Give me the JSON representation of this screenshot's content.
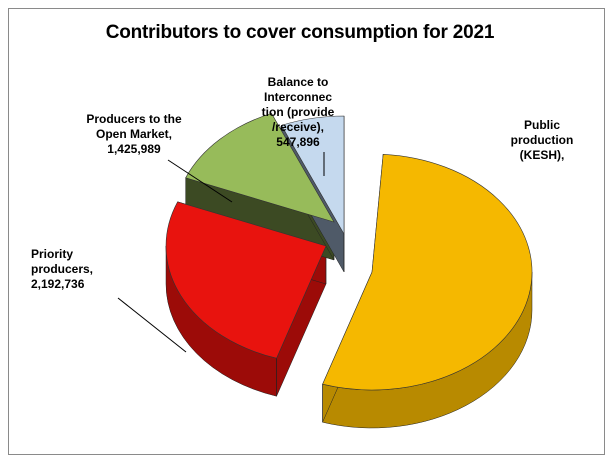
{
  "chart_data": {
    "type": "pie",
    "title": "Contributors to cover consumption for 2021",
    "slices": [
      {
        "name": "Public production (KESH)",
        "label_lines": [
          "Public",
          "production",
          "(KESH),"
        ],
        "value": null,
        "color": "#f5b800",
        "side_color": "#b88a00"
      },
      {
        "name": "Priority producers",
        "label_lines": [
          "Priority",
          "producers,",
          "2,192,736"
        ],
        "value": 2192736,
        "color": "#e8130e",
        "side_color": "#9c0b08"
      },
      {
        "name": "Producers to the Open Market",
        "label_lines": [
          "Producers to the",
          "Open Market,",
          "1,425,989"
        ],
        "value": 1425989,
        "color": "#97bb5a",
        "side_color": "#3c4a23"
      },
      {
        "name": "Balance to Interconnection (provide/receive)",
        "label_lines": [
          "Balance to",
          "Interconnec",
          "tion (provide",
          "/receive),",
          "547,896"
        ],
        "value": 547896,
        "color": "#c5d9ee",
        "side_color": "#4f5a68"
      }
    ],
    "legend": "none",
    "three_d": true,
    "exploded": true
  }
}
